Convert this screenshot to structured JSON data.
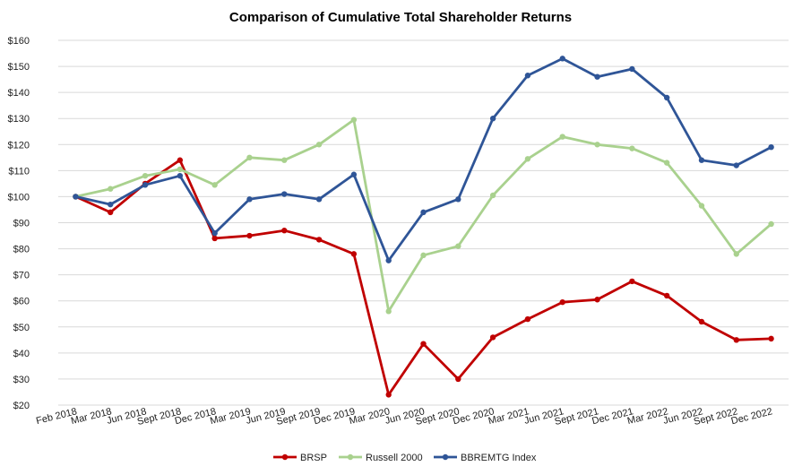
{
  "chart_data": {
    "type": "line",
    "title": "Comparison of Cumulative Total Shareholder Returns",
    "xlabel": "",
    "ylabel": "",
    "ylim": [
      20,
      160
    ],
    "y_ticks": [
      "$20",
      "$30",
      "$40",
      "$50",
      "$60",
      "$70",
      "$80",
      "$90",
      "$100",
      "$110",
      "$120",
      "$130",
      "$140",
      "$150",
      "$160"
    ],
    "y_tick_values": [
      20,
      30,
      40,
      50,
      60,
      70,
      80,
      90,
      100,
      110,
      120,
      130,
      140,
      150,
      160
    ],
    "grid": true,
    "legend_position": "bottom",
    "categories": [
      "Feb 2018",
      "Mar 2018",
      "Jun 2018",
      "Sept 2018",
      "Dec 2018",
      "Mar 2019",
      "Jun 2019",
      "Sept 2019",
      "Dec 2019",
      "Mar 2020",
      "Jun 2020",
      "Sept 2020",
      "Dec 2020",
      "Mar 2021",
      "Jun 2021",
      "Sept 2021",
      "Dec 2021",
      "Mar 2022",
      "Jun 2022",
      "Sept 2022",
      "Dec 2022"
    ],
    "series": [
      {
        "name": "BRSP",
        "color": "#c00000",
        "values": [
          100,
          94,
          105,
          114,
          84,
          85,
          87,
          83.5,
          78,
          24,
          43.5,
          30,
          46,
          53,
          59.5,
          60.5,
          67.5,
          62,
          52,
          45,
          45.5
        ]
      },
      {
        "name": "Russell 2000",
        "color": "#a9d18e",
        "values": [
          100,
          103,
          108,
          110.5,
          104.5,
          115,
          114,
          120,
          129.5,
          56,
          77.5,
          81,
          100.5,
          114.5,
          123,
          120,
          118.5,
          113,
          96.5,
          78,
          89.5
        ]
      },
      {
        "name": "BBREMTG Index",
        "color": "#2f5597",
        "values": [
          100,
          97,
          104.5,
          108,
          86,
          99,
          101,
          99,
          108.5,
          75.5,
          94,
          99,
          130,
          146.5,
          153,
          146,
          149,
          138,
          114,
          112,
          119
        ]
      }
    ]
  }
}
